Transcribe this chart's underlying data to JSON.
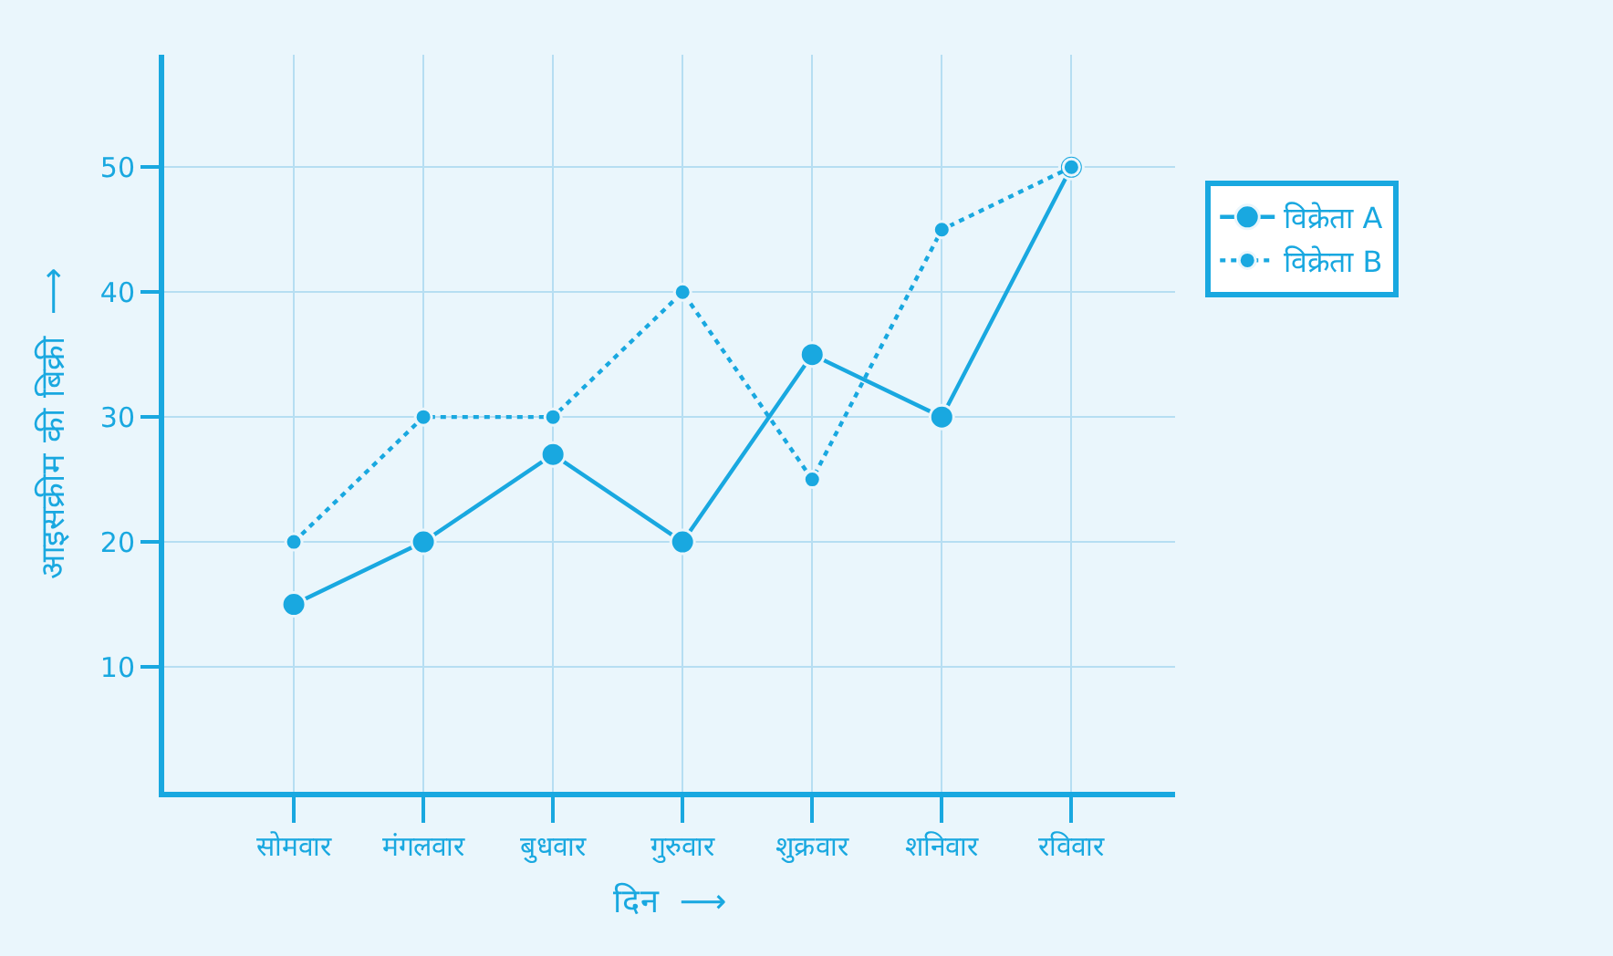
{
  "chart_data": {
    "type": "line",
    "categories": [
      "सोमवार",
      "मंगलवार",
      "बुधवार",
      "गुरुवार",
      "शुक्रवार",
      "शनिवार",
      "रविवार"
    ],
    "series": [
      {
        "name": "विक्रेता A",
        "color": "#19a8e0",
        "values": [
          15,
          20,
          27,
          20,
          35,
          30,
          50
        ],
        "line_style": "solid"
      },
      {
        "name": "विक्रेता B",
        "color": "#19a8e0",
        "values": [
          20,
          30,
          30,
          40,
          25,
          45,
          50
        ],
        "line_style": "dotted"
      }
    ],
    "xlabel": "दिन  ⟶",
    "ylabel": "आइसक्रीम की बिक्री  ⟶",
    "ylim": [
      0,
      59
    ],
    "yticks": [
      10,
      20,
      30,
      40,
      50
    ],
    "marker": "circle",
    "grid": true,
    "legend": "right"
  }
}
